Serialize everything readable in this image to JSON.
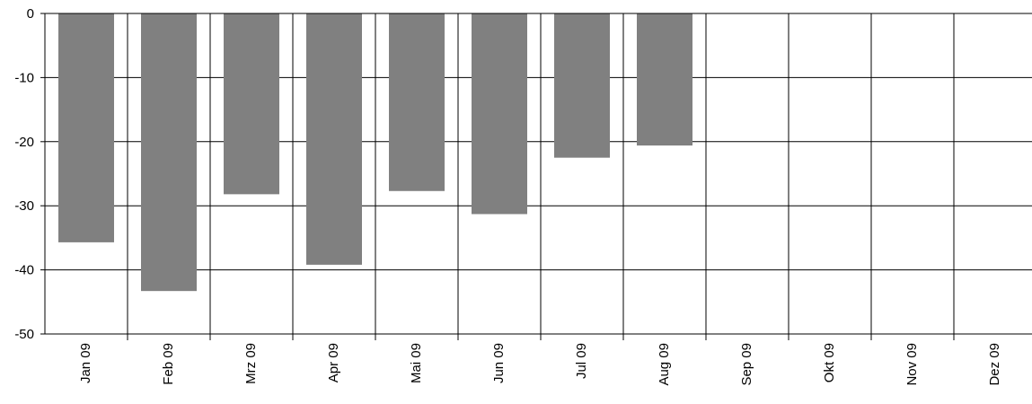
{
  "chart_data": {
    "type": "bar",
    "categories": [
      "Jan 09",
      "Feb 09",
      "Mrz 09",
      "Apr 09",
      "Mai 09",
      "Jun 09",
      "Jul 09",
      "Aug 09",
      "Sep 09",
      "Okt 09",
      "Nov 09",
      "Dez 09"
    ],
    "values": [
      -35.7,
      -43.3,
      -28.2,
      -39.2,
      -27.7,
      -31.3,
      -22.5,
      -20.6,
      null,
      null,
      null,
      null
    ],
    "title": "",
    "xlabel": "",
    "ylabel": "",
    "ylim": [
      -50,
      0
    ],
    "yticks": [
      "0",
      "-10",
      "-20",
      "-30",
      "-40",
      "-50"
    ],
    "grid": true,
    "legend": "none",
    "bar_color": "#808080"
  }
}
